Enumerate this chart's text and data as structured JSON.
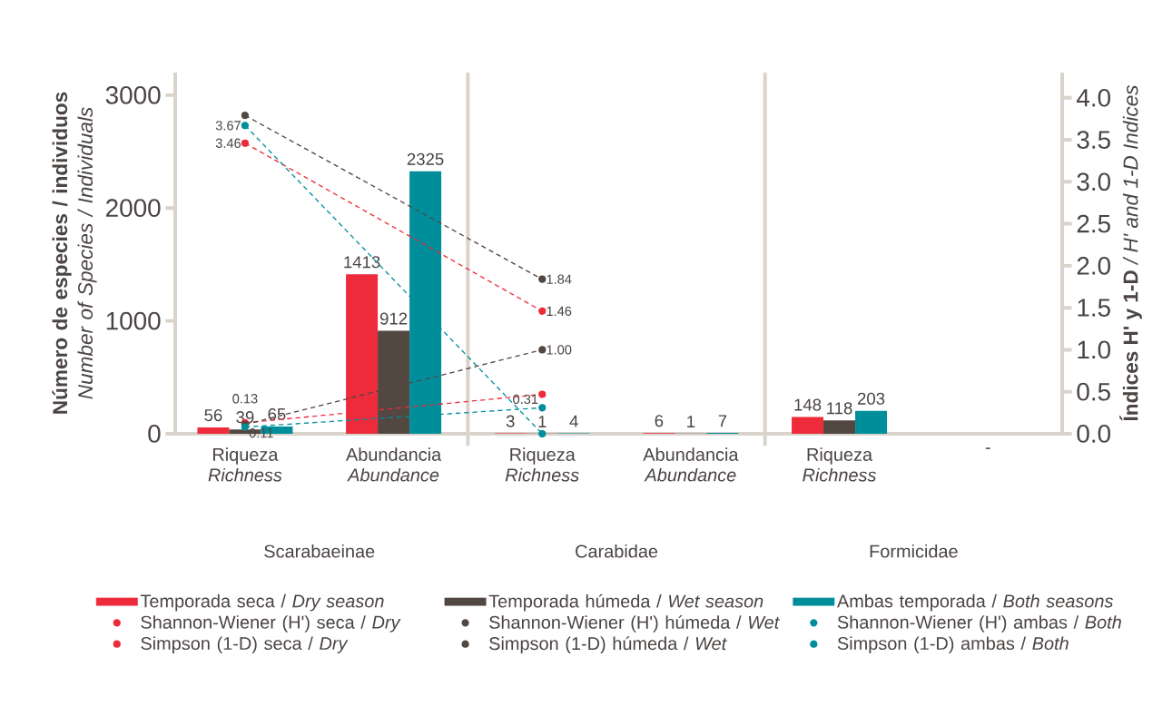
{
  "chart_data": {
    "type": "bar",
    "categories": [
      "Riqueza *Richness*",
      "Abundancia *Abundance*",
      "Riqueza *Richness*",
      "Abundancia *Abundance*",
      "Riqueza *Richness*",
      "-"
    ],
    "ylabel": "**Número de especies / individuos** *Number of  Species / Individuals*",
    "y2label": "**Índices H' y 1-D** */ H' and 1-D Indices*",
    "ylim": [
      0,
      3200
    ],
    "yticks": [
      0,
      1000,
      2000,
      3000
    ],
    "y2lim": [
      0,
      4.3
    ],
    "y2ticks": [
      {
        "value": 0,
        "label": "0.0"
      },
      {
        "value": 0.5,
        "label": "0.5"
      },
      {
        "value": 1,
        "label": "1.0"
      },
      {
        "value": 1.5,
        "label": "1.5"
      },
      {
        "value": 2,
        "label": "2.0"
      },
      {
        "value": 2.5,
        "label": "2.5"
      },
      {
        "value": 3,
        "label": "3.0"
      },
      {
        "value": 3.5,
        "label": "3.5"
      },
      {
        "value": 4,
        "label": "4.0"
      }
    ],
    "series": [
      {
        "name": "Temporada seca / *Dry season*",
        "color": "#ee2b3b",
        "values": [
          56,
          1413,
          3,
          6,
          148,
          null
        ],
        "value_labels": [
          "56",
          "1413",
          "3",
          "6",
          "148",
          null
        ]
      },
      {
        "name": "Temporada húmeda / *Wet season*",
        "color": "#534742",
        "values": [
          39,
          912,
          1,
          1,
          118,
          null
        ],
        "value_labels": [
          "39",
          "912",
          "1",
          "1",
          "118",
          null
        ]
      },
      {
        "name": "Ambas temporada / *Both seasons*",
        "color": "#008e9b",
        "values": [
          65,
          2325,
          4,
          7,
          203,
          null
        ],
        "value_labels": [
          "65",
          "2325",
          "4",
          "7",
          "203",
          null
        ]
      },
      {
        "name": "Shannon-Wiener (H') seca / *Dry*",
        "type": "line",
        "axis": "y2",
        "color": "#ee2b3b",
        "line_style": "dashed",
        "marker": "circle",
        "values": [
          3.46,
          null,
          1.46,
          null,
          null,
          null
        ],
        "value_labels": [
          "3.46",
          null,
          "1.46",
          null,
          null,
          null
        ]
      },
      {
        "name": "Shannon-Wiener (H') húmeda / *Wet*",
        "type": "line",
        "axis": "y2",
        "color": "#534742",
        "line_style": "dashed",
        "marker": "circle",
        "values": [
          3.79,
          null,
          1.84,
          null,
          null,
          null
        ],
        "value_labels": [
          null,
          null,
          "1.84",
          null,
          null,
          null
        ]
      },
      {
        "name": "Shannon-Wiener (H') ambas / *Both*",
        "type": "line",
        "axis": "y2",
        "color": "#008e9b",
        "line_style": "dashed",
        "marker": "circle",
        "values": [
          3.67,
          null,
          0,
          null,
          null,
          null
        ],
        "value_labels": [
          "3.67",
          null,
          null,
          null,
          null,
          null
        ]
      },
      {
        "name": "Simpson (1-D) seca / *Dry*",
        "type": "line",
        "axis": "y2",
        "color": "#ee2b3b",
        "line_style": "dashed",
        "marker": "circle",
        "values": [
          0.13,
          null,
          0.47,
          null,
          null,
          null
        ],
        "value_labels": [
          "0.13",
          null,
          null,
          null,
          null,
          null
        ]
      },
      {
        "name": "Simpson (1-D) húmeda / *Wet*",
        "type": "line",
        "axis": "y2",
        "color": "#534742",
        "line_style": "dashed",
        "marker": "circle",
        "values": [
          0.11,
          null,
          1.0,
          null,
          null,
          null
        ],
        "value_labels": [
          "0.11",
          null,
          "1.00",
          null,
          null,
          null
        ]
      },
      {
        "name": "Simpson (1-D) ambas / *Both*",
        "type": "line",
        "axis": "y2",
        "color": "#008e9b",
        "line_style": "dashed",
        "marker": "circle",
        "values": [
          0.08,
          null,
          0.31,
          null,
          null,
          null
        ],
        "value_labels": [
          null,
          null,
          "0.31",
          null,
          null,
          null
        ]
      }
    ],
    "annotations": [
      "Scarabaeinae",
      "Carabidae",
      "Formicidae"
    ],
    "legend": "bottom"
  }
}
